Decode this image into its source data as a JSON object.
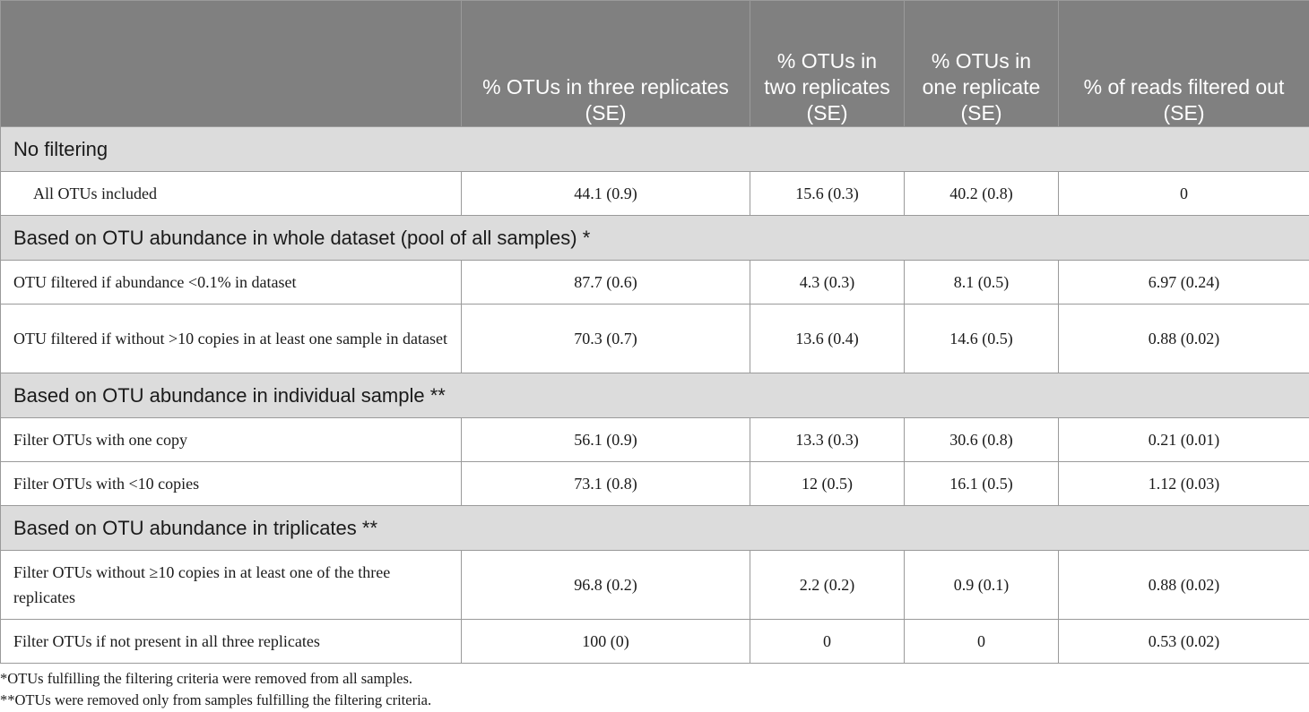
{
  "table": {
    "headers": [
      "",
      "% OTUs in three replicates (SE)",
      "% OTUs in two replicates (SE)",
      "% OTUs in one replicate (SE)",
      "% of reads filtered out (SE)"
    ],
    "sections": [
      {
        "title": "No filtering",
        "rows": [
          {
            "label": "All OTUs included",
            "values": [
              "44.1 (0.9)",
              "15.6 (0.3)",
              "40.2 (0.8)",
              "0"
            ]
          }
        ]
      },
      {
        "title": "Based on OTU abundance in whole dataset (pool of all samples) *",
        "rows": [
          {
            "label": "OTU filtered if abundance <0.1% in dataset",
            "values": [
              "87.7 (0.6)",
              "4.3 (0.3)",
              "8.1 (0.5)",
              "6.97 (0.24)"
            ]
          },
          {
            "label": "OTU filtered if without >10 copies in at least one sample in dataset",
            "values": [
              "70.3 (0.7)",
              "13.6 (0.4)",
              "14.6 (0.5)",
              "0.88 (0.02)"
            ]
          }
        ]
      },
      {
        "title": "Based on OTU abundance in individual sample **",
        "rows": [
          {
            "label": "Filter OTUs with one copy",
            "values": [
              "56.1 (0.9)",
              "13.3 (0.3)",
              "30.6 (0.8)",
              "0.21 (0.01)"
            ]
          },
          {
            "label": "Filter OTUs with <10 copies",
            "values": [
              "73.1 (0.8)",
              "12 (0.5)",
              "16.1 (0.5)",
              "1.12 (0.03)"
            ]
          }
        ]
      },
      {
        "title": "Based on OTU abundance in triplicates **",
        "rows": [
          {
            "label": "Filter OTUs without ≥10 copies in at least one of the three replicates",
            "values": [
              "96.8 (0.2)",
              "2.2 (0.2)",
              "0.9 (0.1)",
              "0.88 (0.02)"
            ]
          },
          {
            "label": "Filter OTUs if not present in all three replicates",
            "values": [
              "100 (0)",
              "0",
              "0",
              "0.53 (0.02)"
            ]
          }
        ]
      }
    ]
  },
  "footnotes": [
    "*OTUs fulfilling the filtering criteria were removed from all samples.",
    "**OTUs were removed only from samples fulfilling the filtering criteria."
  ]
}
